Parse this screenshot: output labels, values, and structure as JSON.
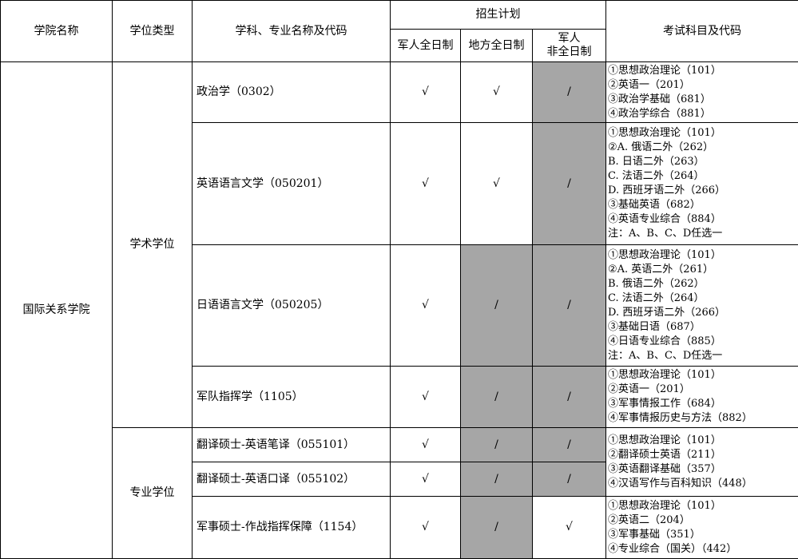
{
  "header": {
    "college": "学院名称",
    "degree_type": "学位类型",
    "major": "学科、专业名称及代码",
    "plan": "招生计划",
    "plan_cols": [
      "军人全日制",
      "地方全日制",
      "军人\n非全日制"
    ],
    "exam": "考试科目及代码"
  },
  "college": "国际关系学院",
  "degree_groups": [
    "学术学位",
    "专业学位"
  ],
  "rows": [
    {
      "major": "政治学（0302）",
      "plan": [
        "√",
        "√",
        "/"
      ],
      "gray": [
        false,
        false,
        true
      ]
    },
    {
      "major": "英语语言文学（050201）",
      "plan": [
        "√",
        "√",
        "/"
      ],
      "gray": [
        false,
        false,
        true
      ]
    },
    {
      "major": "日语语言文学（050205）",
      "plan": [
        "√",
        "/",
        "/"
      ],
      "gray": [
        false,
        true,
        true
      ]
    },
    {
      "major": "军队指挥学（1105）",
      "plan": [
        "√",
        "/",
        "/"
      ],
      "gray": [
        false,
        true,
        true
      ]
    },
    {
      "major": "翻译硕士-英语笔译（055101）",
      "plan": [
        "√",
        "/",
        "/"
      ],
      "gray": [
        false,
        true,
        true
      ]
    },
    {
      "major": "翻译硕士-英语口译（055102）",
      "plan": [
        "√",
        "/",
        "/"
      ],
      "gray": [
        false,
        true,
        true
      ]
    },
    {
      "major": "军事硕士-作战指挥保障（1154）",
      "plan": [
        "√",
        "/",
        "√"
      ],
      "gray": [
        false,
        true,
        false
      ]
    }
  ],
  "exams": [
    [
      "①思想政治理论（101）",
      "②英语一（201）",
      "③政治学基础（681）",
      "④政治学综合（881）"
    ],
    [
      "①思想政治理论（101）",
      "②A. 俄语二外（262）",
      "B. 日语二外（263）",
      "C. 法语二外（264）",
      "D. 西班牙语二外（266）",
      "③基础英语（682）",
      "④英语专业综合（884）",
      "注：A、B、C、D任选一"
    ],
    [
      "①思想政治理论（101）",
      "②A. 英语二外（261）",
      "B. 俄语二外（262）",
      "C. 法语二外（264）",
      "D.  西班牙语二外（266）",
      "③基础日语（687）",
      "④日语专业综合（885）",
      "注：A、B、C、D任选一"
    ],
    [
      "①思想政治理论（101）",
      "②英语一（201）",
      "③军事情报工作（684）",
      "④军事情报历史与方法（882）"
    ],
    [
      "①思想政治理论（101）",
      "②翻译硕士英语（211）",
      "③英语翻译基础（357）",
      "④汉语写作与百科知识（448）"
    ],
    [
      "①思想政治理论（101）",
      "②英语二（204）",
      "③军事基础（351）",
      "④专业综合（国关）（442）"
    ]
  ],
  "colors": {
    "shaded": "#a6a6a6",
    "border": "#000000"
  }
}
